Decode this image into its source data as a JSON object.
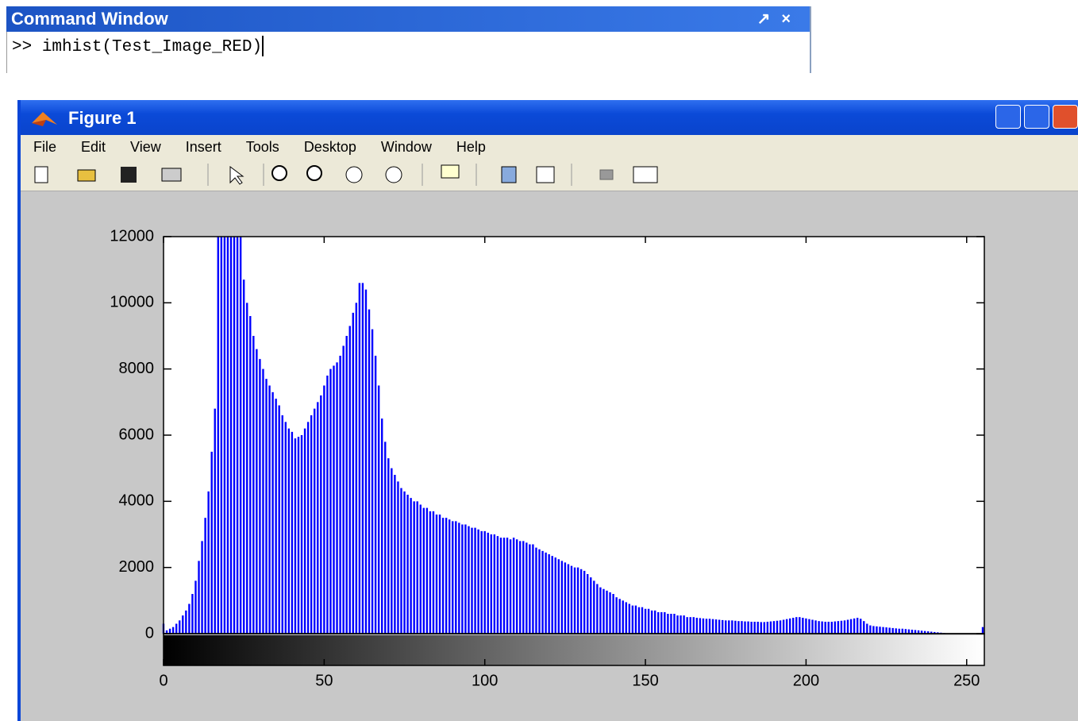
{
  "command_window": {
    "title": "Command Window",
    "prompt": ">>",
    "command": "imhist(Test_Image_RED)"
  },
  "figure": {
    "title": "Figure 1",
    "menu": [
      "File",
      "Edit",
      "View",
      "Insert",
      "Tools",
      "Desktop",
      "Window",
      "Help"
    ]
  },
  "chart_data": {
    "type": "stem",
    "color": "#0000ff",
    "xlim": [
      0,
      255
    ],
    "ylim": [
      0,
      12000
    ],
    "xticks": [
      0,
      50,
      100,
      150,
      200,
      250
    ],
    "yticks": [
      0,
      2000,
      4000,
      6000,
      8000,
      10000,
      12000
    ],
    "colorbar": true,
    "x": [
      0,
      1,
      2,
      3,
      4,
      5,
      6,
      7,
      8,
      9,
      10,
      11,
      12,
      13,
      14,
      15,
      16,
      17,
      18,
      19,
      20,
      21,
      22,
      23,
      24,
      25,
      26,
      27,
      28,
      29,
      30,
      31,
      32,
      33,
      34,
      35,
      36,
      37,
      38,
      39,
      40,
      41,
      42,
      43,
      44,
      45,
      46,
      47,
      48,
      49,
      50,
      51,
      52,
      53,
      54,
      55,
      56,
      57,
      58,
      59,
      60,
      61,
      62,
      63,
      64,
      65,
      66,
      67,
      68,
      69,
      70,
      71,
      72,
      73,
      74,
      75,
      76,
      77,
      78,
      79,
      80,
      81,
      82,
      83,
      84,
      85,
      86,
      87,
      88,
      89,
      90,
      91,
      92,
      93,
      94,
      95,
      96,
      97,
      98,
      99,
      100,
      101,
      102,
      103,
      104,
      105,
      106,
      107,
      108,
      109,
      110,
      111,
      112,
      113,
      114,
      115,
      116,
      117,
      118,
      119,
      120,
      121,
      122,
      123,
      124,
      125,
      126,
      127,
      128,
      129,
      130,
      131,
      132,
      133,
      134,
      135,
      136,
      137,
      138,
      139,
      140,
      141,
      142,
      143,
      144,
      145,
      146,
      147,
      148,
      149,
      150,
      151,
      152,
      153,
      154,
      155,
      156,
      157,
      158,
      159,
      160,
      161,
      162,
      163,
      164,
      165,
      166,
      167,
      168,
      169,
      170,
      171,
      172,
      173,
      174,
      175,
      176,
      177,
      178,
      179,
      180,
      181,
      182,
      183,
      184,
      185,
      186,
      187,
      188,
      189,
      190,
      191,
      192,
      193,
      194,
      195,
      196,
      197,
      198,
      199,
      200,
      201,
      202,
      203,
      204,
      205,
      206,
      207,
      208,
      209,
      210,
      211,
      212,
      213,
      214,
      215,
      216,
      217,
      218,
      219,
      220,
      221,
      222,
      223,
      224,
      225,
      226,
      227,
      228,
      229,
      230,
      231,
      232,
      233,
      234,
      235,
      236,
      237,
      238,
      239,
      240,
      241,
      242,
      243,
      244,
      245,
      246,
      247,
      248,
      249,
      250,
      251,
      252,
      253,
      254,
      255
    ],
    "values": [
      300,
      100,
      150,
      200,
      300,
      400,
      550,
      700,
      900,
      1200,
      1600,
      2200,
      2800,
      3500,
      4300,
      5500,
      6800,
      12000,
      12000,
      12000,
      12000,
      12000,
      12000,
      12000,
      12000,
      10700,
      10000,
      9600,
      9000,
      8600,
      8300,
      8000,
      7700,
      7500,
      7300,
      7100,
      6900,
      6600,
      6400,
      6200,
      6100,
      5900,
      5950,
      6000,
      6200,
      6400,
      6600,
      6800,
      7000,
      7200,
      7500,
      7800,
      8000,
      8100,
      8200,
      8400,
      8700,
      9000,
      9300,
      9700,
      10000,
      10600,
      10600,
      10400,
      9800,
      9200,
      8400,
      7500,
      6500,
      5800,
      5300,
      5000,
      4800,
      4600,
      4400,
      4300,
      4200,
      4100,
      4000,
      4000,
      3900,
      3800,
      3800,
      3700,
      3700,
      3600,
      3600,
      3500,
      3500,
      3450,
      3400,
      3400,
      3350,
      3300,
      3300,
      3250,
      3200,
      3200,
      3150,
      3100,
      3100,
      3050,
      3000,
      3000,
      2950,
      2900,
      2900,
      2900,
      2850,
      2900,
      2850,
      2800,
      2800,
      2750,
      2700,
      2700,
      2600,
      2550,
      2500,
      2450,
      2400,
      2350,
      2300,
      2250,
      2200,
      2150,
      2100,
      2050,
      2000,
      2000,
      1950,
      1900,
      1800,
      1700,
      1600,
      1500,
      1400,
      1350,
      1300,
      1250,
      1200,
      1100,
      1050,
      1000,
      950,
      900,
      850,
      850,
      800,
      800,
      750,
      750,
      700,
      700,
      650,
      650,
      650,
      600,
      600,
      600,
      550,
      550,
      550,
      500,
      500,
      500,
      480,
      470,
      460,
      450,
      450,
      440,
      430,
      420,
      410,
      400,
      400,
      400,
      390,
      380,
      380,
      370,
      370,
      360,
      360,
      360,
      350,
      350,
      360,
      370,
      380,
      390,
      400,
      420,
      440,
      460,
      480,
      500,
      500,
      480,
      460,
      440,
      420,
      400,
      380,
      370,
      360,
      360,
      360,
      370,
      380,
      390,
      400,
      420,
      440,
      460,
      480,
      450,
      380,
      300,
      250,
      230,
      220,
      210,
      200,
      190,
      180,
      170,
      160,
      150,
      150,
      140,
      130,
      120,
      110,
      100,
      90,
      80,
      70,
      60,
      50,
      40,
      30,
      20,
      10,
      5,
      0,
      0,
      0,
      0,
      0,
      0,
      0,
      0,
      0,
      200
    ]
  }
}
